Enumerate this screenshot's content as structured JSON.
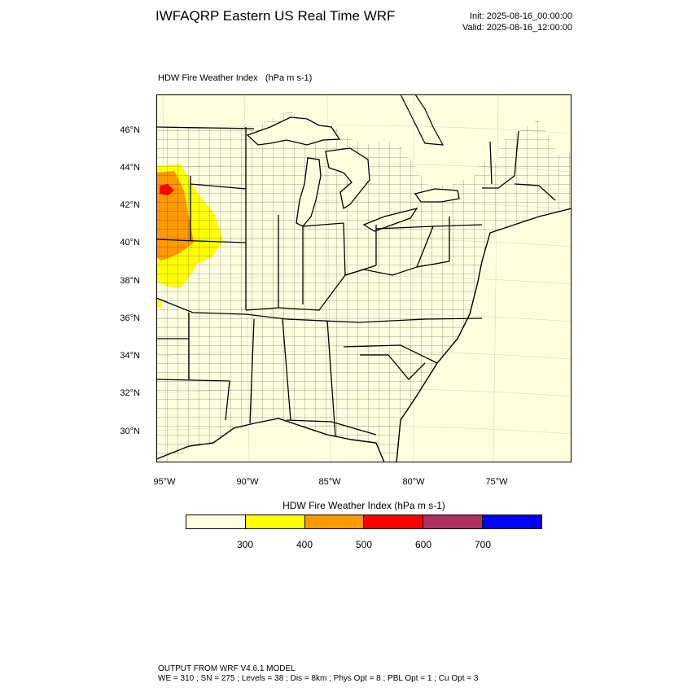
{
  "header": {
    "title": "IWFAQRP Eastern US Real Time WRF",
    "init": "Init: 2025-08-16_00:00:00",
    "valid": "Valid: 2025-08-16_12:00:00"
  },
  "plot": {
    "title": "HDW Fire Weather Index   (hPa m s-1)"
  },
  "map": {
    "lat_labels": [
      "46°N",
      "44°N",
      "42°N",
      "40°N",
      "38°N",
      "36°N",
      "34°N",
      "32°N",
      "30°N"
    ],
    "lon_labels": [
      "95°W",
      "90°W",
      "85°W",
      "80°W",
      "75°W"
    ],
    "background_color": "#ffffe0",
    "field_colors": {
      "yellow": "#ffff00",
      "orange": "#ff9900",
      "red": "#ff0000"
    }
  },
  "colorbar": {
    "title": "HDW Fire Weather Index (hPa m s-1)",
    "colors": [
      "#ffffe0",
      "#ffff00",
      "#ff9900",
      "#ff0000",
      "#b03060",
      "#0000ff"
    ],
    "ticks": [
      "300",
      "400",
      "500",
      "600",
      "700"
    ]
  },
  "footer": {
    "line1": "OUTPUT FROM WRF V4.6.1 MODEL",
    "line2": "WE = 310 ; SN = 275 ; Levels = 38 ; Dis = 8km ; Phys Opt = 8 ; PBL Opt = 1 ; Cu Opt = 3"
  }
}
